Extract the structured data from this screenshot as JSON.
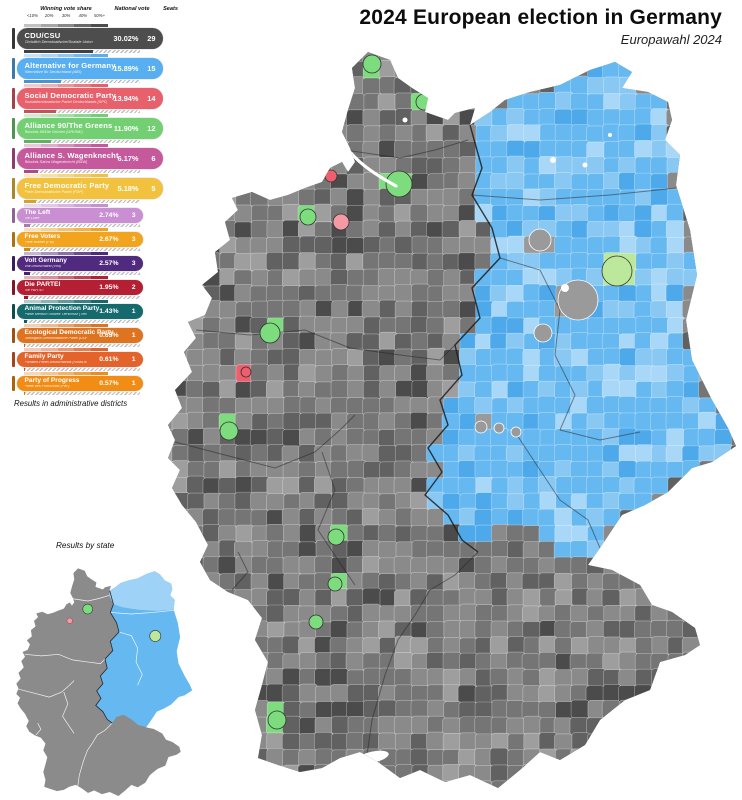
{
  "title": "2024 European election in Germany",
  "subtitle": "Europawahl 2024",
  "legend": {
    "scale_title": "Winning vote share",
    "scale_ticks": [
      "<10%",
      "20%",
      "30%",
      "40%",
      "50%+"
    ],
    "national_vote_header": "National vote",
    "seats_header": "Seats",
    "caption": "Results in administrative districts",
    "parties": [
      {
        "id": "cdu-csu",
        "name": "CDU/CSU",
        "subtitle": "Christlich Demokratische/Soziale Union",
        "national_vote": "30.02%",
        "seats": 29,
        "color": "#4d4d4d",
        "big": true
      },
      {
        "id": "afd",
        "name": "Alternative for Germany",
        "subtitle": "Alternative für Deutschland (AfD)",
        "national_vote": "15.89%",
        "seats": 15,
        "color": "#57aef0",
        "big": true
      },
      {
        "id": "spd",
        "name": "Social Democratic Party",
        "subtitle": "Sozialdemokratische Partei Deutschlands (SPD)",
        "national_vote": "13.94%",
        "seats": 14,
        "color": "#e8606b",
        "big": true
      },
      {
        "id": "gruene",
        "name": "Alliance 90/The Greens",
        "subtitle": "Bündnis 90/Die Grünen (GRÜNE)",
        "national_vote": "11.90%",
        "seats": 12,
        "color": "#72d073",
        "big": true
      },
      {
        "id": "bsw",
        "name": "Alliance S. Wagenknecht",
        "subtitle": "Bündnis Sahra Wagenknecht (BSW)",
        "national_vote": "6.17%",
        "seats": 6,
        "color": "#c6599c",
        "big": true
      },
      {
        "id": "fdp",
        "name": "Free Democratic Party",
        "subtitle": "Freie Demokratische Partei (FDP)",
        "national_vote": "5.18%",
        "seats": 5,
        "color": "#f2c23e",
        "big": true
      },
      {
        "id": "linke",
        "name": "The Left",
        "subtitle": "Die Linke",
        "national_vote": "2.74%",
        "seats": 3,
        "color": "#c98fd2",
        "big": false
      },
      {
        "id": "fw",
        "name": "Free Voters",
        "subtitle": "Freie Wähler (FW)",
        "national_vote": "2.67%",
        "seats": 3,
        "color": "#f2a41f",
        "big": false
      },
      {
        "id": "volt",
        "name": "Volt Germany",
        "subtitle": "Volt Deutschland (Volt)",
        "national_vote": "2.57%",
        "seats": 3,
        "color": "#502a7e",
        "big": false
      },
      {
        "id": "partei",
        "name": "Die PARTEI",
        "subtitle": "Die PARTEI",
        "national_vote": "1.95%",
        "seats": 2,
        "color": "#b41f34",
        "big": false
      },
      {
        "id": "tierschutz",
        "name": "Animal Protection Party",
        "subtitle": "Partei Mensch Umwelt Tierschutz (Tierschutzpartei)",
        "national_vote": "1.43%",
        "seats": 1,
        "color": "#156a6e",
        "big": false
      },
      {
        "id": "oedp",
        "name": "Ecological Democratic Party",
        "subtitle": "Ökologisch-Demokratische Partei (ÖDP)",
        "national_vote": "0.65%",
        "seats": 1,
        "color": "#de7420",
        "big": false
      },
      {
        "id": "familie",
        "name": "Family Party",
        "subtitle": "Familien-Partei Deutschlands (FAMILIE)",
        "national_vote": "0.61%",
        "seats": 1,
        "color": "#e4632a",
        "big": false
      },
      {
        "id": "pdf",
        "name": "Party of Progress",
        "subtitle": "Partei des Fortschritts (PdF)",
        "national_vote": "0.57%",
        "seats": 1,
        "color": "#f18d15",
        "big": false
      }
    ]
  },
  "inset": {
    "label": "Results by state"
  },
  "map": {
    "west_base": "#7a7a7a",
    "east_base": "#66b8f1",
    "west_shades": [
      "#9e9e9e",
      "#8a8a8a",
      "#757575",
      "#616161",
      "#4b4b4b"
    ],
    "east_shades": [
      "#a8d7f7",
      "#8ac8f4",
      "#66b8f1",
      "#4ea9ea"
    ],
    "green": "#7ddc7d",
    "light_green": "#bce89b",
    "red": "#ee5f6d",
    "pink": "#f49aa4",
    "east_gray": "#9a9a9a",
    "mv_blue": "#9ed2f6",
    "water": "#ffffff",
    "state_border": "#222222"
  }
}
